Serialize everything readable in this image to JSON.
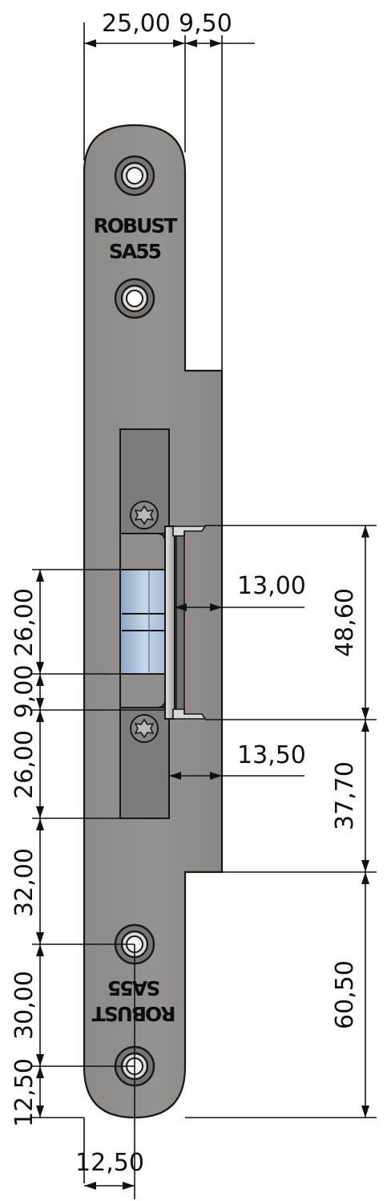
{
  "drawing": {
    "brand_top": [
      "ROBUST",
      "SA55"
    ],
    "brand_bottom": [
      "ROBUST",
      "SA55"
    ],
    "colors": {
      "plate": "#8f8c8a",
      "pocket": "#7d7976",
      "latch_blue": "#b7c9e0",
      "line": "#111111"
    },
    "dimensions": {
      "top_width": "25,00",
      "top_offset": "9,50",
      "latch_width": "13,00",
      "latch_height": "48,60",
      "pocket_width": "13,50",
      "lower_height": "37,70",
      "bottom_height": "60,50",
      "left_upper_pocket": "26,00",
      "left_gap": "9,00",
      "left_lower_pocket": "26,00",
      "left_to_hole": "32,00",
      "hole_pitch": "30,00",
      "hole_to_end": "12,50",
      "bottom_width": "12,50"
    }
  }
}
